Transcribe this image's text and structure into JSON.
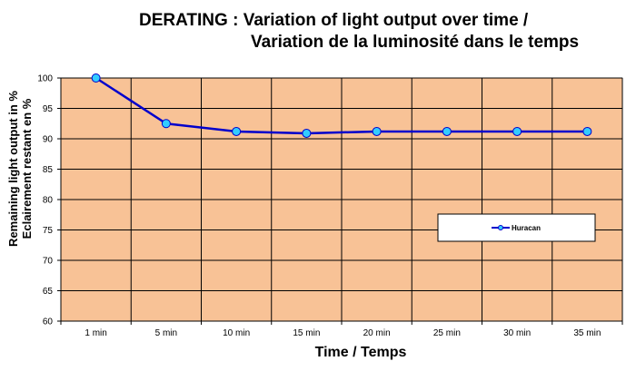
{
  "chart_data": {
    "type": "line",
    "title_line1": "DERATING : Variation of light output over time /",
    "title_line2": "Variation de la luminosité dans le temps",
    "xlabel": "Time / Temps",
    "ylabel_line1": "Remaining light output in %",
    "ylabel_line2": "Eclairement restant en %",
    "categories": [
      "1 min",
      "5 min",
      "10 min",
      "15 min",
      "20 min",
      "25 min",
      "30 min",
      "35 min"
    ],
    "ylim": [
      60,
      100
    ],
    "yticks": [
      60,
      65,
      70,
      75,
      80,
      85,
      90,
      95,
      100
    ],
    "grid": true,
    "legend_position": "right",
    "series": [
      {
        "name": "Huracan",
        "values": [
          100,
          92.5,
          91.2,
          90.9,
          91.2,
          91.2,
          91.2,
          91.2
        ]
      }
    ]
  },
  "colors": {
    "plot_background": "#F8C296",
    "line": "#0000CC",
    "marker_fill": "#33CCFF",
    "gridline": "#000000"
  }
}
